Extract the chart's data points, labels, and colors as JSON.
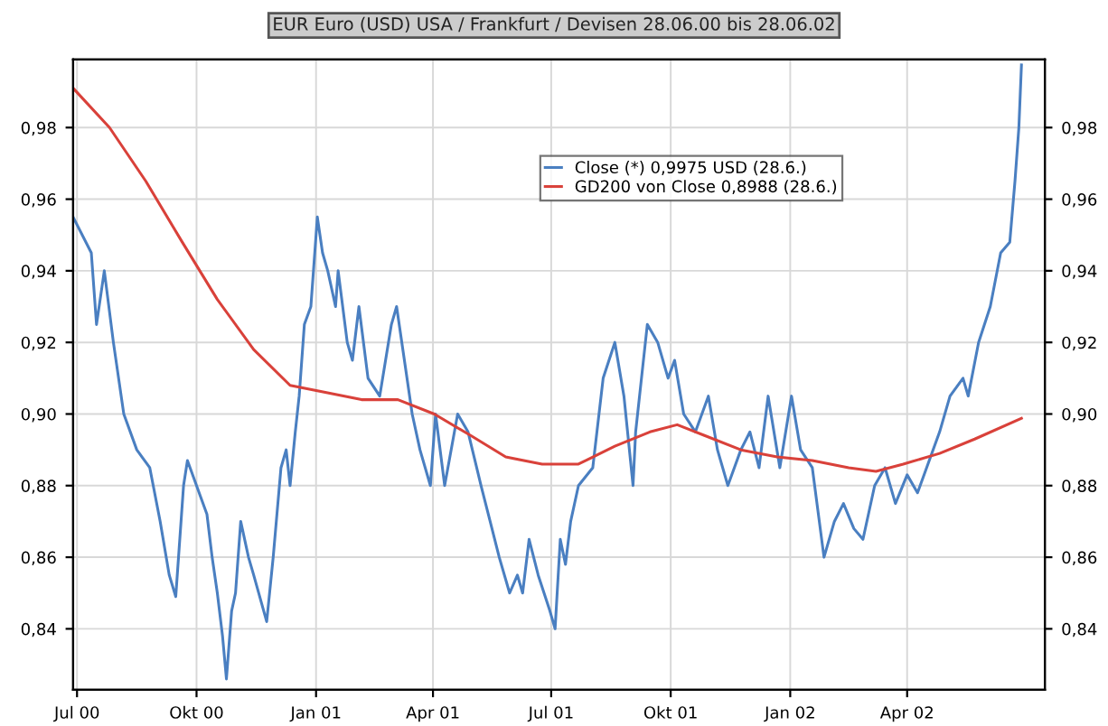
{
  "chart_data": {
    "type": "line",
    "title": "EUR Euro (USD) USA / Frankfurt / Devisen 28.06.00 bis 28.06.02",
    "series": [
      {
        "name": "Close (*) 0,9975 USD (28.6.)",
        "color": "#4a7fc1",
        "x": [
          "2000-06-28",
          "2000-07-12",
          "2000-07-16",
          "2000-07-22",
          "2000-07-29",
          "2000-08-06",
          "2000-08-16",
          "2000-08-26",
          "2000-09-03",
          "2000-09-10",
          "2000-09-15",
          "2000-09-21",
          "2000-09-24",
          "2000-10-03",
          "2000-10-09",
          "2000-10-13",
          "2000-10-17",
          "2000-10-21",
          "2000-10-24",
          "2000-10-28",
          "2000-10-31",
          "2000-11-04",
          "2000-11-10",
          "2000-11-14",
          "2000-11-24",
          "2000-11-29",
          "2000-12-05",
          "2000-12-09",
          "2000-12-12",
          "2000-12-16",
          "2000-12-19",
          "2000-12-23",
          "2000-12-28",
          "2001-01-02",
          "2001-01-06",
          "2001-01-10",
          "2001-01-16",
          "2001-01-18",
          "2001-01-25",
          "2001-01-29",
          "2001-02-03",
          "2001-02-10",
          "2001-02-19",
          "2001-02-28",
          "2001-03-04",
          "2001-03-12",
          "2001-03-16",
          "2001-03-22",
          "2001-03-30",
          "2001-04-03",
          "2001-04-10",
          "2001-04-20",
          "2001-04-28",
          "2001-05-08",
          "2001-05-15",
          "2001-05-22",
          "2001-05-30",
          "2001-06-05",
          "2001-06-09",
          "2001-06-14",
          "2001-06-21",
          "2001-06-30",
          "2001-07-04",
          "2001-07-08",
          "2001-07-12",
          "2001-07-16",
          "2001-07-22",
          "2001-08-02",
          "2001-08-10",
          "2001-08-19",
          "2001-08-26",
          "2001-09-02",
          "2001-09-04",
          "2001-09-13",
          "2001-09-21",
          "2001-09-29",
          "2001-10-04",
          "2001-10-11",
          "2001-10-20",
          "2001-10-30",
          "2001-11-06",
          "2001-11-14",
          "2001-11-24",
          "2001-12-01",
          "2001-12-08",
          "2001-12-15",
          "2001-12-24",
          "2002-01-02",
          "2002-01-09",
          "2002-01-18",
          "2002-01-27",
          "2002-02-04",
          "2002-02-11",
          "2002-02-19",
          "2002-02-26",
          "2002-03-07",
          "2002-03-15",
          "2002-03-23",
          "2002-04-01",
          "2002-04-09",
          "2002-04-16",
          "2002-04-26",
          "2002-05-04",
          "2002-05-14",
          "2002-05-18",
          "2002-05-26",
          "2002-06-04",
          "2002-06-12",
          "2002-06-19",
          "2002-06-23",
          "2002-06-26",
          "2002-06-28"
        ],
        "values": [
          0.955,
          0.945,
          0.925,
          0.94,
          0.92,
          0.9,
          0.89,
          0.885,
          0.87,
          0.855,
          0.849,
          0.88,
          0.887,
          0.878,
          0.872,
          0.86,
          0.85,
          0.838,
          0.826,
          0.845,
          0.85,
          0.87,
          0.86,
          0.855,
          0.842,
          0.86,
          0.885,
          0.89,
          0.88,
          0.895,
          0.905,
          0.925,
          0.93,
          0.955,
          0.945,
          0.94,
          0.93,
          0.94,
          0.92,
          0.915,
          0.93,
          0.91,
          0.905,
          0.925,
          0.93,
          0.91,
          0.9,
          0.89,
          0.88,
          0.9,
          0.88,
          0.9,
          0.895,
          0.88,
          0.87,
          0.86,
          0.85,
          0.855,
          0.85,
          0.865,
          0.855,
          0.845,
          0.84,
          0.865,
          0.858,
          0.87,
          0.88,
          0.885,
          0.91,
          0.92,
          0.905,
          0.88,
          0.895,
          0.925,
          0.92,
          0.91,
          0.915,
          0.9,
          0.895,
          0.905,
          0.89,
          0.88,
          0.89,
          0.895,
          0.885,
          0.905,
          0.885,
          0.905,
          0.89,
          0.885,
          0.86,
          0.87,
          0.875,
          0.868,
          0.865,
          0.88,
          0.885,
          0.875,
          0.883,
          0.878,
          0.885,
          0.895,
          0.905,
          0.91,
          0.905,
          0.92,
          0.93,
          0.945,
          0.948,
          0.965,
          0.98,
          0.9975
        ]
      },
      {
        "name": "GD200 von Close 0,8988 (28.6.)",
        "color": "#d9413a",
        "x": [
          "2000-06-28",
          "2000-07-26",
          "2000-08-23",
          "2000-09-20",
          "2000-10-17",
          "2000-11-14",
          "2000-12-12",
          "2001-01-09",
          "2001-02-05",
          "2001-03-05",
          "2001-04-02",
          "2001-04-30",
          "2001-05-27",
          "2001-06-24",
          "2001-07-22",
          "2001-08-19",
          "2001-09-15",
          "2001-10-06",
          "2001-10-27",
          "2001-11-24",
          "2001-12-22",
          "2002-01-18",
          "2002-02-15",
          "2002-03-08",
          "2002-03-29",
          "2002-04-26",
          "2002-05-23",
          "2002-06-28"
        ],
        "values": [
          0.991,
          0.98,
          0.965,
          0.948,
          0.932,
          0.918,
          0.908,
          0.906,
          0.904,
          0.904,
          0.9,
          0.894,
          0.888,
          0.886,
          0.886,
          0.891,
          0.895,
          0.897,
          0.894,
          0.89,
          0.888,
          0.887,
          0.885,
          0.884,
          0.886,
          0.889,
          0.893,
          0.8988
        ]
      }
    ],
    "xlim": [
      "2000-06-28",
      "2002-07-16"
    ],
    "xticks": [
      {
        "value": "2000-07-01",
        "label": "Jul 00"
      },
      {
        "value": "2000-10-01",
        "label": "Okt 00"
      },
      {
        "value": "2001-01-01",
        "label": "Jan 01"
      },
      {
        "value": "2001-04-01",
        "label": "Apr 01"
      },
      {
        "value": "2001-07-01",
        "label": "Jul 01"
      },
      {
        "value": "2001-10-01",
        "label": "Okt 01"
      },
      {
        "value": "2002-01-01",
        "label": "Jan 02"
      },
      {
        "value": "2002-04-01",
        "label": "Apr 02"
      }
    ],
    "ylim": [
      0.823,
      0.999
    ],
    "yticks": [
      {
        "value": 0.84,
        "label": "0,84"
      },
      {
        "value": 0.86,
        "label": "0,86"
      },
      {
        "value": 0.88,
        "label": "0,88"
      },
      {
        "value": 0.9,
        "label": "0,90"
      },
      {
        "value": 0.92,
        "label": "0,92"
      },
      {
        "value": 0.94,
        "label": "0,94"
      },
      {
        "value": 0.96,
        "label": "0,96"
      },
      {
        "value": 0.98,
        "label": "0,98"
      }
    ],
    "y2lim": [
      0.823,
      0.999
    ],
    "y2ticks": [
      {
        "value": 0.84,
        "label": "0,84"
      },
      {
        "value": 0.86,
        "label": "0,86"
      },
      {
        "value": 0.88,
        "label": "0,88"
      },
      {
        "value": 0.9,
        "label": "0,90"
      },
      {
        "value": 0.92,
        "label": "0,92"
      },
      {
        "value": 0.94,
        "label": "0,94"
      },
      {
        "value": 0.96,
        "label": "0,96"
      },
      {
        "value": 0.98,
        "label": "0,98"
      }
    ],
    "grid": true,
    "legend": "top right",
    "marker": "none",
    "line_style": "solid"
  }
}
